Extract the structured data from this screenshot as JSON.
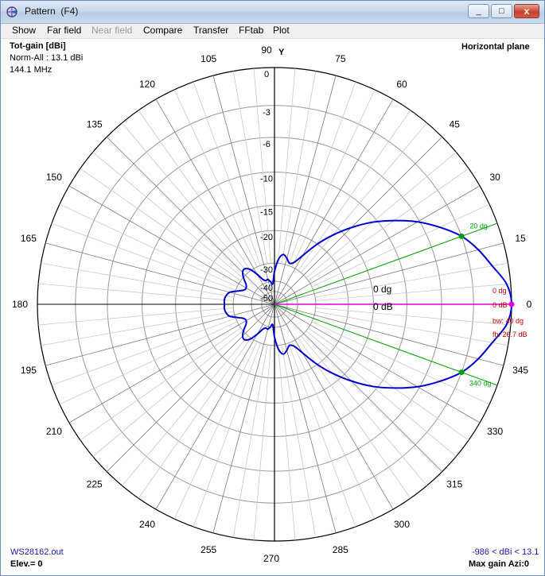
{
  "window": {
    "title": "Pattern  (F4)",
    "minimize_glyph": "_",
    "maximize_glyph": "□",
    "close_glyph": "x",
    "icon": "pattern-app-icon"
  },
  "menu": [
    {
      "label": "Show",
      "enabled": true
    },
    {
      "label": "Far field",
      "enabled": true
    },
    {
      "label": "Near field",
      "enabled": false
    },
    {
      "label": "Compare",
      "enabled": true
    },
    {
      "label": "Transfer",
      "enabled": true
    },
    {
      "label": "FFtab",
      "enabled": true
    },
    {
      "label": "Plot",
      "enabled": true
    }
  ],
  "info": {
    "gain_title": "Tot-gain [dBi]",
    "norm": "Norm-All : 13.1 dBi",
    "frequency": "144.1 MHz",
    "plane": "Horizontal plane",
    "y_axis": "Y",
    "filename": "WS28162.out",
    "elevation": "Elev.= 0",
    "gain_range": "-986 < dBi < 13.1",
    "max_gain": "Max gain Azi:0"
  },
  "chart_data": {
    "type": "polar",
    "radial_unit": "dB",
    "radial_ticks": [
      "0",
      "-3",
      "-6",
      "-10",
      "-15",
      "-20",
      "-30",
      "-40",
      "-50"
    ],
    "radial_tick_values": [
      0,
      -3,
      -6,
      -10,
      -15,
      -20,
      -30,
      -40,
      -50
    ],
    "angle_labels": [
      "90",
      "75",
      "60",
      "45",
      "30",
      "15",
      "0",
      "345",
      "330",
      "315",
      "300",
      "285",
      "270",
      "255",
      "240",
      "225",
      "210",
      "195",
      "180",
      "165",
      "150",
      "135",
      "120",
      "105"
    ],
    "angle_label_values": [
      90,
      75,
      60,
      45,
      30,
      15,
      0,
      345,
      330,
      315,
      300,
      285,
      270,
      255,
      240,
      225,
      210,
      195,
      180,
      165,
      150,
      135,
      120,
      105
    ],
    "pattern": {
      "name": "",
      "color": "#0000d0",
      "angles": [
        0,
        5,
        10,
        15,
        20,
        25,
        30,
        35,
        40,
        45,
        50,
        55,
        60,
        65,
        70,
        75,
        80,
        85,
        90,
        95,
        100,
        105,
        110,
        115,
        120,
        125,
        130,
        135,
        140,
        145,
        150,
        155,
        160,
        165,
        170,
        175,
        180
      ],
      "gain_db": [
        0,
        -0.3,
        -1.2,
        -2,
        -3,
        -4.5,
        -6.2,
        -8.3,
        -10.6,
        -13.4,
        -16.6,
        -20.3,
        -24.7,
        -28,
        -29,
        -27.5,
        -26.5,
        -28.5,
        -34,
        -42,
        -40,
        -38,
        -38.5,
        -37,
        -33,
        -29.5,
        -28,
        -28.5,
        -30.5,
        -33,
        -34,
        -33.5,
        -31,
        -28,
        -27,
        -26.6,
        -26.7
      ]
    },
    "markers": {
      "beamwidth": {
        "angles": [
          20,
          340
        ],
        "labels": [
          "20 dg",
          "340 dg"
        ],
        "color": "#00a000"
      },
      "max": {
        "angle": 0,
        "label_angle": "0 dg",
        "label_db": "0 dB",
        "color": "#e000e0"
      }
    },
    "center_labels": {
      "angle": "0 dg",
      "db": "0 dB"
    },
    "annotations": {
      "bw": "bw: 40 dg",
      "fb": "fb: 26.7 dB",
      "color": "#c00000"
    }
  },
  "colors": {
    "grid": "#9a9a9a",
    "axes": "#000000",
    "pattern": "#0000d0",
    "beam": "#00a000",
    "max": "#e000e0",
    "annot": "#c00000",
    "blue_text": "#1a1aa6"
  }
}
